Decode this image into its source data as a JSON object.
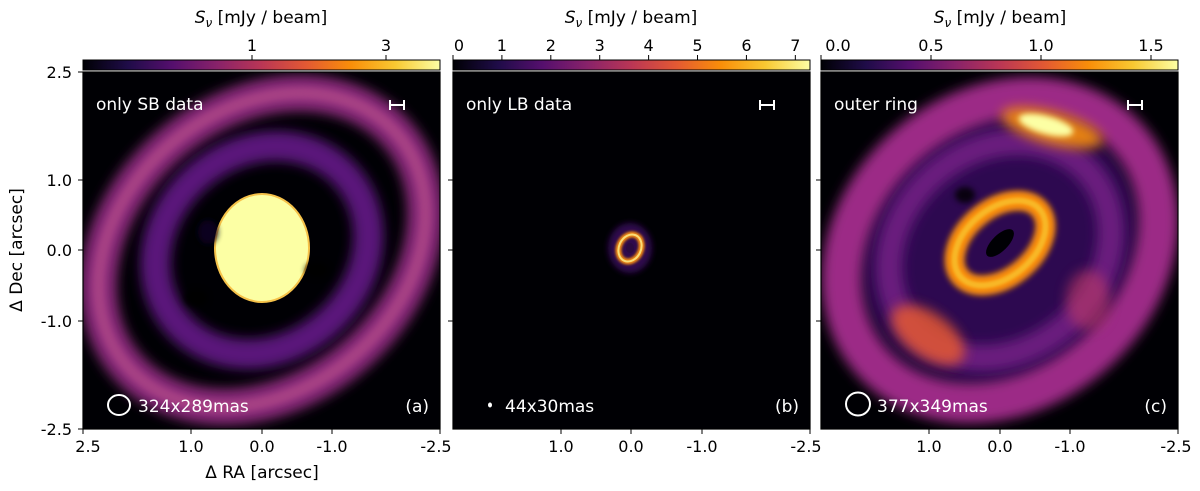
{
  "colorbar_label": "S",
  "colorbar_label_sub": "ν",
  "colorbar_unit": " [mJy / beam]",
  "y_axis_label": "Δ Dec [arcsec]",
  "x_axis_label": "Δ RA [arcsec]",
  "y_ticks": [
    "2.5",
    "1.0",
    "0.0",
    "-1.0",
    "-2.5"
  ],
  "x_ticks": [
    "2.5",
    "1.0",
    "0.0",
    "-1.0",
    "-2.5"
  ],
  "colormap": [
    "#000004",
    "#1f0c48",
    "#550f6d",
    "#88226a",
    "#ba3655",
    "#e35933",
    "#f98e09",
    "#f8c932",
    "#fcffa4"
  ],
  "panels": [
    {
      "title": "only SB data",
      "letter": "(a)",
      "beam_label": "324x289mas",
      "colorbar_ticks": [
        "1",
        "3"
      ]
    },
    {
      "title": "only LB data",
      "letter": "(b)",
      "beam_label": "44x30mas",
      "colorbar_ticks": [
        "0",
        "1",
        "2",
        "3",
        "4",
        "5",
        "6",
        "7"
      ]
    },
    {
      "title": "outer ring",
      "letter": "(c)",
      "beam_label": "377x349mas",
      "colorbar_ticks": [
        "0.0",
        "0.5",
        "1.0",
        "1.5"
      ]
    }
  ]
}
